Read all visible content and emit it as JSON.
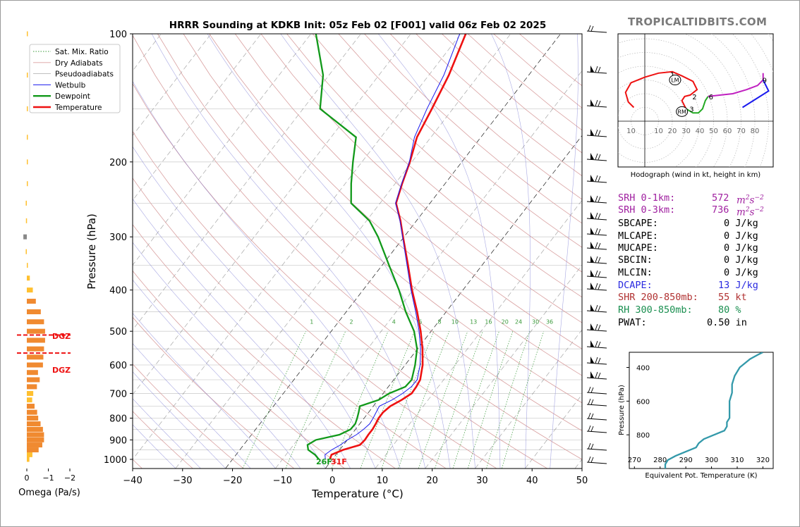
{
  "title": "HRRR Sounding at KDKB Init: 05z Feb 02 [F001] valid 06z Feb 02 2025",
  "brand": "TROPICALTIDBITS.COM",
  "colors": {
    "temperature": "#ee1111",
    "dewpoint": "#11991a",
    "wetbulb": "#1a1aee",
    "dry_adiabat": "#d9a0a0",
    "pseudoadiabat": "#b0b0b0",
    "sat_mix": "#3a9a3a",
    "srh": "#a020a0",
    "dcape": "#2a2ae0",
    "shear": "#b03030",
    "rh": "#1a8f50",
    "omega_bar": "#f08a30",
    "omega_bar_light": "#ffc030",
    "dgz": "#ee1111",
    "theta_e": "#3399aa"
  },
  "chart_data": [
    {
      "type": "line",
      "name": "skew-t",
      "xlabel": "Temperature (°C)",
      "ylabel": "Pressure (hPa)",
      "xlim": [
        -40,
        50
      ],
      "ylim": [
        1050,
        100
      ],
      "ylog": true,
      "x_ticks": [
        -40,
        -30,
        -20,
        -10,
        0,
        10,
        20,
        30,
        40,
        50
      ],
      "y_ticks": [
        100,
        200,
        300,
        400,
        500,
        600,
        700,
        800,
        900,
        1000
      ],
      "legend": {
        "placement": "top-left",
        "entries": [
          "Sat. Mix. Ratio",
          "Dry Adiabats",
          "Pseudoadiabats",
          "Wetbulb",
          "Dewpoint",
          "Temperature"
        ]
      },
      "mixing_ratio_labels": [
        "1",
        "2",
        "4",
        "6",
        "8",
        "10",
        "13",
        "16",
        "20",
        "24",
        "30",
        "36"
      ],
      "mixing_ratio_values": [
        1,
        2,
        4,
        6,
        8,
        10,
        13,
        16,
        20,
        24,
        30,
        36
      ],
      "surface_labels": {
        "dewpoint": "26F",
        "temperature": "31F"
      },
      "series": [
        {
          "name": "Temperature",
          "p": [
            1000,
            975,
            950,
            925,
            900,
            875,
            850,
            825,
            800,
            775,
            750,
            725,
            700,
            675,
            650,
            600,
            550,
            500,
            450,
            400,
            350,
            300,
            275,
            250,
            225,
            200,
            175,
            150,
            125,
            100
          ],
          "t": [
            -0.5,
            -0.9,
            0.7,
            3.3,
            3.5,
            3.4,
            3.4,
            3.2,
            2.9,
            2.9,
            3.4,
            4.7,
            5.7,
            5.6,
            5.3,
            3.5,
            1.0,
            -2.1,
            -5.8,
            -10.2,
            -14.8,
            -20.2,
            -23.2,
            -26.8,
            -28.6,
            -30.4,
            -32.8,
            -34.2,
            -36.0,
            -39.0
          ]
        },
        {
          "name": "Dewpoint",
          "p": [
            1000,
            975,
            950,
            925,
            900,
            875,
            850,
            825,
            800,
            775,
            750,
            725,
            700,
            675,
            650,
            600,
            550,
            500,
            450,
            400,
            350,
            300,
            275,
            250,
            225,
            200,
            175,
            150,
            125,
            100
          ],
          "t": [
            -2.7,
            -4.2,
            -6.3,
            -7.2,
            -6.3,
            -2.4,
            -1.0,
            -0.9,
            -1.4,
            -2.0,
            -2.7,
            0.1,
            1.2,
            3.4,
            3.6,
            2.0,
            -0.1,
            -3.4,
            -8.1,
            -12.8,
            -18.6,
            -25.2,
            -29.4,
            -35.8,
            -38.8,
            -41.8,
            -45.0,
            -56.6,
            -61.2,
            -69.0
          ]
        },
        {
          "name": "Wetbulb",
          "p": [
            1000,
            975,
            950,
            925,
            900,
            875,
            850,
            825,
            800,
            775,
            750,
            725,
            700,
            675,
            650,
            600,
            550,
            500,
            450,
            400,
            350,
            300,
            275,
            250,
            225,
            200,
            175,
            150,
            125,
            100
          ],
          "t": [
            -1.4,
            -2.2,
            -1.6,
            -0.6,
            0.0,
            1.0,
            1.6,
            2.0,
            1.8,
            1.5,
            1.2,
            2.8,
            3.9,
            4.6,
            4.7,
            3.0,
            0.6,
            -2.4,
            -6.1,
            -10.4,
            -15.0,
            -20.3,
            -23.3,
            -26.9,
            -28.7,
            -30.5,
            -33.3,
            -35.2,
            -37.0,
            -40.2
          ]
        }
      ]
    },
    {
      "type": "bar",
      "name": "omega",
      "xlabel": "Omega (Pa/s)",
      "x_ticks": [
        "0",
        "−1",
        "−2"
      ],
      "xlim": [
        0.5,
        -2.8
      ],
      "dgz_label": "DGZ",
      "dgz_bounds_hpa": [
        530,
        598
      ],
      "p": [
        1000,
        975,
        950,
        925,
        900,
        875,
        850,
        825,
        800,
        775,
        750,
        725,
        700,
        675,
        650,
        625,
        600,
        575,
        550,
        525,
        500,
        475,
        450,
        425,
        400,
        375,
        350,
        325,
        300,
        275,
        250,
        225,
        200,
        175,
        150,
        125,
        100
      ],
      "values": [
        -0.12,
        -0.26,
        -0.55,
        -0.72,
        -0.8,
        -0.8,
        -0.75,
        -0.64,
        -0.53,
        -0.48,
        -0.36,
        -0.25,
        -0.3,
        -0.47,
        -0.6,
        -0.52,
        -0.75,
        -0.77,
        -0.8,
        -0.85,
        -0.85,
        -0.8,
        -0.65,
        -0.42,
        -0.28,
        -0.14,
        -0.05,
        0.05,
        0.16,
        0.04,
        0.05,
        -0.03,
        -0.02,
        -0.03,
        -0.03,
        -0.02,
        -0.03
      ]
    },
    {
      "type": "line",
      "name": "hodograph",
      "caption": "Hodograph (wind in kt, height in km)",
      "ring_labels": [
        "10",
        "10",
        "20",
        "30",
        "40",
        "50",
        "60",
        "70",
        "80"
      ],
      "ring_values": [
        10,
        10,
        20,
        30,
        40,
        50,
        60,
        70,
        80
      ],
      "height_labels": [
        "1",
        "2",
        "3",
        "6",
        "9"
      ],
      "height_label_points": [
        [
          20,
          34
        ],
        [
          36,
          18
        ],
        [
          34,
          9
        ],
        [
          48,
          18
        ],
        [
          87,
          30
        ]
      ],
      "motion_labels": [
        "LM",
        "RM"
      ],
      "motion_points": [
        [
          22,
          30
        ],
        [
          27,
          7
        ]
      ],
      "segments": [
        {
          "color": "red",
          "points": [
            [
              -8,
              10
            ],
            [
              -12,
              14
            ],
            [
              -14,
              21
            ],
            [
              -10,
              28
            ],
            [
              0,
              32
            ],
            [
              10,
              35
            ],
            [
              20,
              36
            ],
            [
              27,
              33
            ],
            [
              35,
              29
            ],
            [
              38,
              23
            ],
            [
              33,
              19
            ],
            [
              29,
              18
            ],
            [
              27,
              15
            ],
            [
              29,
              11
            ],
            [
              30,
              9
            ]
          ]
        },
        {
          "color": "green",
          "points": [
            [
              30,
              9
            ],
            [
              35,
              6
            ],
            [
              39,
              6
            ],
            [
              42,
              9
            ],
            [
              44,
              15
            ],
            [
              46,
              18
            ]
          ]
        },
        {
          "color": "magenta",
          "points": [
            [
              46,
              18
            ],
            [
              55,
              19
            ],
            [
              64,
              20
            ],
            [
              74,
              23
            ],
            [
              82,
              26
            ],
            [
              86,
              30
            ],
            [
              86,
              35
            ]
          ]
        },
        {
          "color": "blue",
          "points": [
            [
              86,
              30
            ],
            [
              90,
              22
            ],
            [
              71,
              10
            ]
          ]
        }
      ]
    },
    {
      "type": "line",
      "name": "theta-e",
      "xlabel": "Equivalent Pot. Temperature (K)",
      "ylabel": "Pressure (hPa)",
      "x_ticks": [
        270,
        280,
        290,
        300,
        310,
        320
      ],
      "xlim": [
        268,
        324
      ],
      "y_ticks": [
        400,
        600,
        800
      ],
      "ylim": [
        1000,
        310
      ],
      "theta_e": [
        282,
        282,
        283,
        286,
        290,
        294,
        295,
        297,
        301,
        305,
        306,
        306,
        307,
        307,
        307,
        308,
        308,
        309,
        311,
        315,
        318,
        320
      ],
      "p": [
        1000,
        975,
        950,
        925,
        900,
        875,
        850,
        825,
        800,
        775,
        750,
        725,
        700,
        650,
        600,
        550,
        500,
        450,
        400,
        350,
        325,
        310
      ]
    }
  ],
  "stats": {
    "srh_1": {
      "label": "SRH 0-1km:",
      "value": "572"
    },
    "srh_3": {
      "label": "SRH 0-3km:",
      "value": "736"
    },
    "srh_unit_base": "m",
    "srh_unit_exp1": "2",
    "srh_unit_s": "s",
    "srh_unit_exp2": "−2",
    "sbcape": {
      "label": "SBCAPE:",
      "value": "0 J/kg"
    },
    "mlcape": {
      "label": "MLCAPE:",
      "value": "0 J/kg"
    },
    "mucape": {
      "label": "MUCAPE:",
      "value": "0 J/kg"
    },
    "sbcin": {
      "label": "SBCIN:",
      "value": "0 J/kg"
    },
    "mlcin": {
      "label": "MLCIN:",
      "value": "0 J/kg"
    },
    "dcape": {
      "label": "DCAPE:",
      "value": "13 J/kg"
    },
    "shear": {
      "label": "SHR 200-850mb:",
      "value": "55 kt"
    },
    "rh": {
      "label": "RH 300-850mb:",
      "value": "80 %"
    },
    "pwat": {
      "label": "PWAT:",
      "value": "0.50 in"
    }
  }
}
